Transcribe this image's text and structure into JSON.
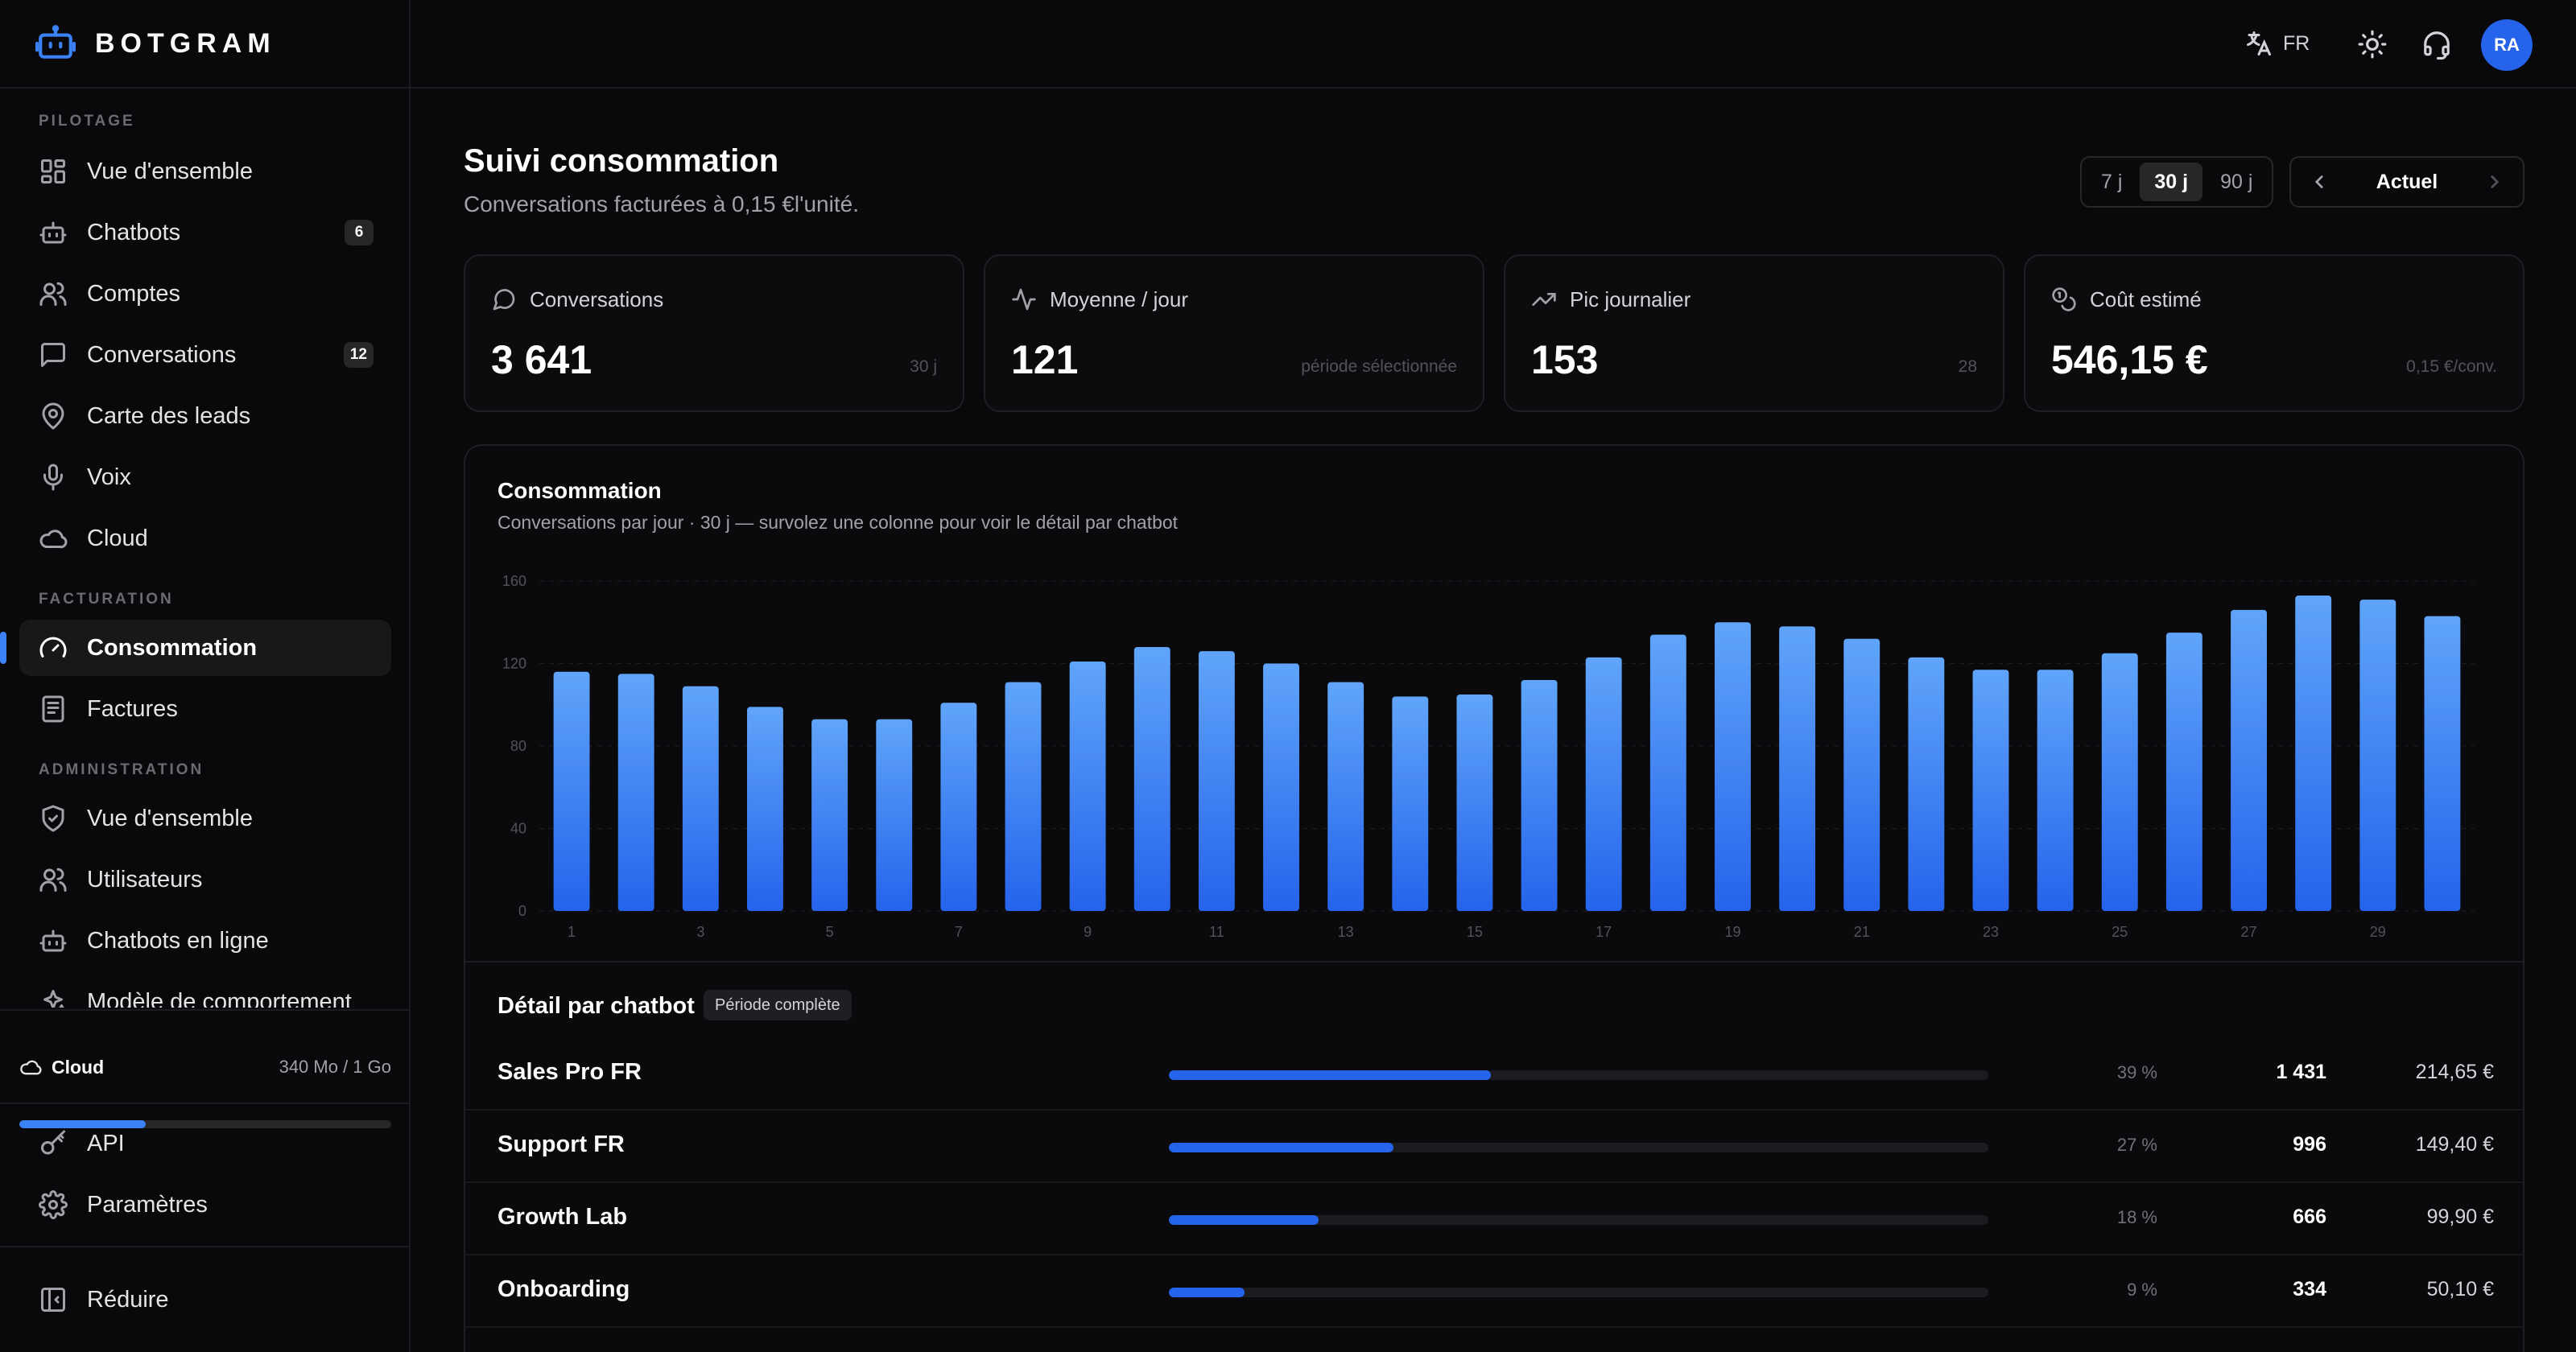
{
  "brand": {
    "name": "BOTGRAM"
  },
  "sidebar": {
    "sections": [
      {
        "label": "PILOTAGE"
      },
      {
        "label": "FACTURATION"
      },
      {
        "label": "ADMINISTRATION"
      }
    ],
    "items": [
      {
        "label": "Vue d'ensemble",
        "icon": "dashboard-icon"
      },
      {
        "label": "Chatbots",
        "icon": "bot-icon",
        "count": "6"
      },
      {
        "label": "Comptes",
        "icon": "users-icon"
      },
      {
        "label": "Conversations",
        "icon": "message-icon",
        "count": "12"
      },
      {
        "label": "Carte des leads",
        "icon": "map-pin-icon"
      },
      {
        "label": "Voix",
        "icon": "microphone-icon"
      },
      {
        "label": "Cloud",
        "icon": "cloud-icon"
      },
      {
        "label": "Consommation",
        "icon": "gauge-icon",
        "active": true
      },
      {
        "label": "Factures",
        "icon": "receipt-icon"
      },
      {
        "label": "Vue d'ensemble",
        "icon": "shield-icon"
      },
      {
        "label": "Utilisateurs",
        "icon": "users-icon"
      },
      {
        "label": "Chatbots en ligne",
        "icon": "bot-icon"
      },
      {
        "label": "Modèle de comportement",
        "icon": "sparkles-icon"
      }
    ],
    "cloud": {
      "label": "Cloud",
      "usage": "340 Mo / 1 Go",
      "used_fraction": 0.34
    },
    "bottom": [
      {
        "label": "API",
        "icon": "key-icon"
      },
      {
        "label": "Paramètres",
        "icon": "gear-icon"
      },
      {
        "label": "Réduire",
        "icon": "collapse-icon"
      }
    ]
  },
  "topbar": {
    "lang": "FR",
    "avatar": "RA"
  },
  "page": {
    "title": "Suivi consommation",
    "subtitle": "Conversations facturées à 0,15 €l'unité.",
    "ranges": [
      "7 j",
      "30 j",
      "90 j"
    ],
    "selected_range": "30 j",
    "period_label": "Actuel"
  },
  "cards": [
    {
      "label": "Conversations",
      "value": "3 641",
      "note": "30 j",
      "icon": "message-icon"
    },
    {
      "label": "Moyenne / jour",
      "value": "121",
      "note": "période sélectionnée",
      "icon": "activity-icon"
    },
    {
      "label": "Pic journalier",
      "value": "153",
      "note": "28",
      "icon": "trending-up-icon"
    },
    {
      "label": "Coût estimé",
      "value": "546,15 €",
      "note": "0,15 €/conv.",
      "icon": "coins-icon"
    }
  ],
  "chart_data": {
    "type": "bar",
    "title": "Consommation",
    "subtitle": "Conversations par jour · 30 j — survolez une colonne pour voir le détail par chatbot",
    "categories": [
      1,
      2,
      3,
      4,
      5,
      6,
      7,
      8,
      9,
      10,
      11,
      12,
      13,
      14,
      15,
      16,
      17,
      18,
      19,
      20,
      21,
      22,
      23,
      24,
      25,
      26,
      27,
      28,
      29,
      30
    ],
    "x_tick_labels": [
      "1",
      "3",
      "5",
      "7",
      "9",
      "11",
      "13",
      "15",
      "17",
      "19",
      "21",
      "23",
      "25",
      "27",
      "29"
    ],
    "values": [
      116,
      115,
      109,
      99,
      93,
      93,
      101,
      111,
      121,
      128,
      126,
      120,
      111,
      104,
      105,
      112,
      123,
      134,
      140,
      138,
      132,
      123,
      117,
      117,
      125,
      135,
      146,
      153,
      151,
      143
    ],
    "ylim": [
      0,
      160
    ],
    "yticks": [
      "0",
      "40",
      "80",
      "120",
      "160"
    ],
    "grid": true,
    "color": "#3b82f6"
  },
  "detail": {
    "title": "Détail par chatbot",
    "badge": "Période complète",
    "rows": [
      {
        "name": "Sales Pro FR",
        "pct": "39 %",
        "share": 0.393,
        "conversations": "1 431",
        "cost": "214,65 €"
      },
      {
        "name": "Support FR",
        "pct": "27 %",
        "share": 0.274,
        "conversations": "996",
        "cost": "149,40 €"
      },
      {
        "name": "Growth Lab",
        "pct": "18 %",
        "share": 0.183,
        "conversations": "666",
        "cost": "99,90 €"
      },
      {
        "name": "Onboarding",
        "pct": "9 %",
        "share": 0.092,
        "conversations": "334",
        "cost": "50,10 €"
      }
    ]
  }
}
